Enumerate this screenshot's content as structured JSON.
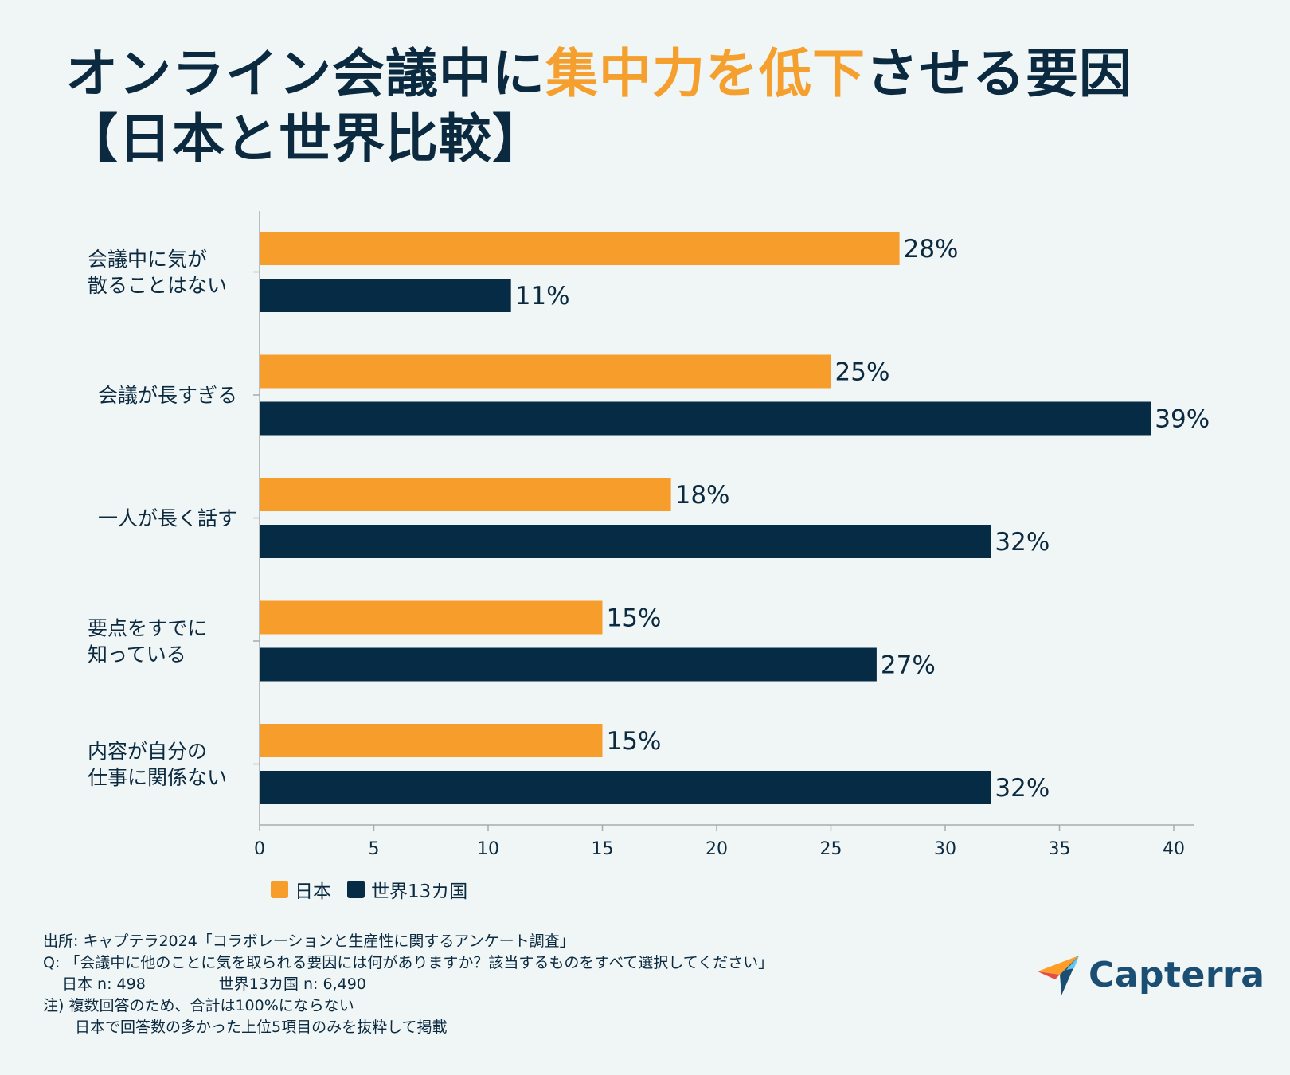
{
  "title": {
    "line1_pre": "オンライン会議中に",
    "line1_highlight": "集中力を低下",
    "line1_post": "させる要因",
    "line2": "【日本と世界比較】"
  },
  "colors": {
    "japan": "#f79d2b",
    "world": "#062b45",
    "axis": "#aaaaaa",
    "text": "#0b2a40"
  },
  "chart_data": {
    "type": "bar",
    "orientation": "horizontal",
    "categories": [
      [
        "会議中に気が",
        "散ることはない"
      ],
      [
        "会議が長すぎる"
      ],
      [
        "一人が長く話す"
      ],
      [
        "要点をすでに",
        "知っている"
      ],
      [
        "内容が自分の",
        "仕事に関係ない"
      ]
    ],
    "series": [
      {
        "name": "日本",
        "values": [
          28,
          25,
          18,
          15,
          15
        ],
        "color": "#f79d2b"
      },
      {
        "name": "世界13カ国",
        "values": [
          11,
          39,
          32,
          27,
          32
        ],
        "color": "#062b45"
      }
    ],
    "value_suffix": "%",
    "xlim": [
      0,
      40
    ],
    "xticks": [
      0,
      5,
      10,
      15,
      20,
      25,
      30,
      35,
      40
    ],
    "legend_position": "bottom-left"
  },
  "legend": {
    "japan": "日本",
    "world": "世界13カ国"
  },
  "notes": {
    "source": "出所: キャプテラ2024「コラボレーションと生産性に関するアンケート調査」",
    "question": "Q: 「会議中に他のことに気を取られる要因には何がありますか？該当するものをすべて選択してください」",
    "n_japan": "日本 n: 498",
    "n_world": "世界13カ国 n: 6,490",
    "note1": "注) 複数回答のため、合計は100%にならない",
    "note2": "日本で回答数の多かった上位5項目のみを抜粋して掲載"
  },
  "logo": {
    "text": "Capterra",
    "icon": "capterra-arrow-icon"
  }
}
